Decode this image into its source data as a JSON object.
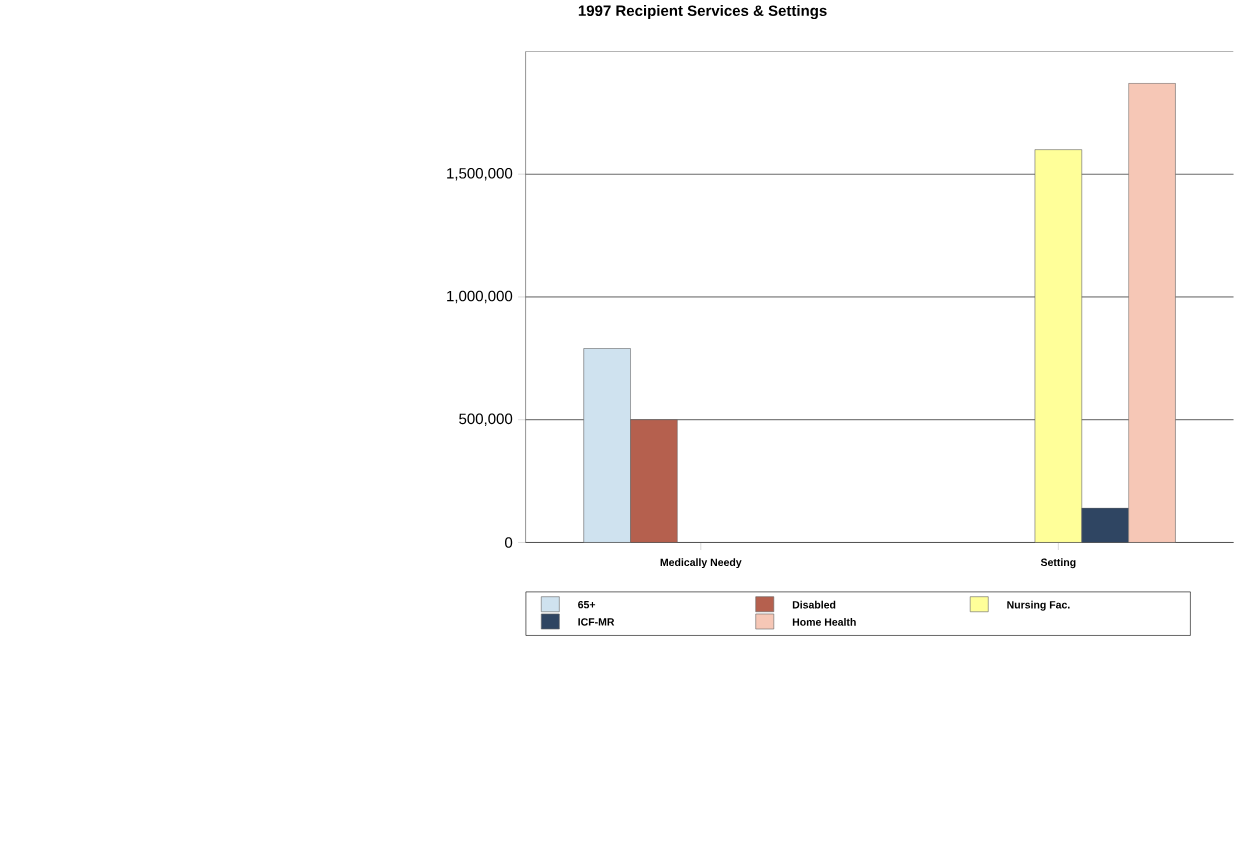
{
  "chart_data": {
    "type": "bar",
    "title": "1997 Recipient Services & Settings",
    "categories": [
      "Medically Needy",
      "Setting"
    ],
    "series": [
      {
        "name": "65+",
        "color": "#cfe2ef",
        "values": [
          790000,
          null
        ]
      },
      {
        "name": "Disabled",
        "color": "#b5604e",
        "values": [
          500000,
          null
        ]
      },
      {
        "name": "Nursing Fac.",
        "color": "#ffff99",
        "values": [
          null,
          1600000
        ]
      },
      {
        "name": "ICF-MR",
        "color": "#2f4562",
        "values": [
          null,
          140000
        ]
      },
      {
        "name": "Home Health",
        "color": "#f6c7b6",
        "values": [
          null,
          1870000
        ]
      }
    ],
    "ylim": [
      0,
      2000000
    ],
    "yticks": [
      0,
      {
        "value": 500000,
        "label": "500,000"
      },
      {
        "value": 1000000,
        "label": "1,000,000"
      },
      {
        "value": 1500000,
        "label": "1,500,000"
      }
    ],
    "grid": "y",
    "legend": "bottom"
  }
}
